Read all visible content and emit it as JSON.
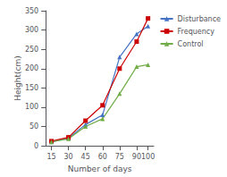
{
  "chart_data": {
    "type": "line",
    "xlabel": "Number of days",
    "ylabel": "Height(cm)",
    "x": [
      15,
      30,
      45,
      60,
      75,
      90,
      100
    ],
    "series": [
      {
        "name": "Disturbance",
        "color": "#4472C4",
        "marker": "triangle",
        "values": [
          10,
          20,
          55,
          80,
          230,
          290,
          310
        ]
      },
      {
        "name": "Frequency",
        "color": "#CC0000",
        "marker": "square",
        "values": [
          12,
          22,
          65,
          105,
          200,
          270,
          330
        ]
      },
      {
        "name": "Control",
        "color": "#70AD47",
        "marker": "triangle",
        "values": [
          10,
          18,
          50,
          70,
          135,
          205,
          210
        ]
      }
    ],
    "xlim": [
      10,
      105
    ],
    "ylim": [
      0,
      350
    ],
    "xticks": [
      15,
      30,
      45,
      60,
      75,
      90,
      100
    ],
    "yticks": [
      0,
      50,
      100,
      150,
      200,
      250,
      300,
      350
    ],
    "grid": false,
    "legend": "upper right"
  }
}
